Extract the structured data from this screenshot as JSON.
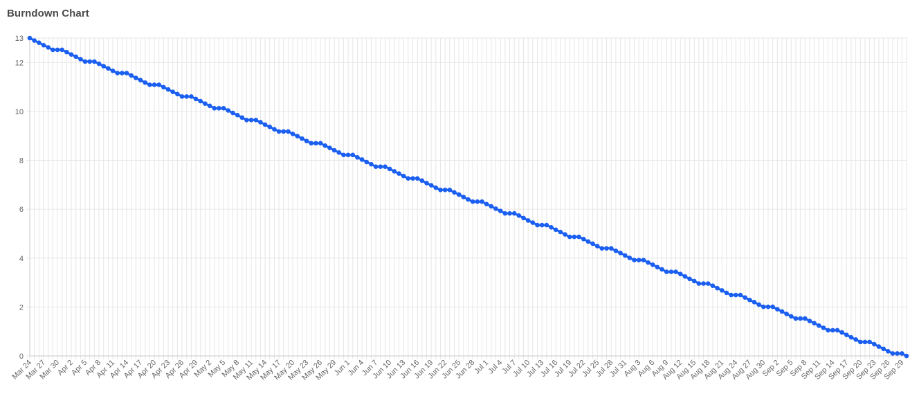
{
  "title": "Burndown Chart",
  "colors": {
    "line": "#1b5ff0",
    "point": "#1b5ff0",
    "grid": "#e6e6e6",
    "axis": "#c8c8c8"
  },
  "chart_data": {
    "type": "line",
    "title": "Burndown Chart",
    "xlabel": "",
    "ylabel": "",
    "start_date": "2024-03-24",
    "end_date": "2024-09-30",
    "ylim": [
      0,
      13
    ],
    "y_ticks": [
      0,
      2,
      4,
      6,
      8,
      10,
      12,
      13
    ],
    "x_tick_labels": [
      "Mar 24",
      "Mar 27",
      "Mar 30",
      "Apr 2",
      "Apr 5",
      "Apr 8",
      "Apr 11",
      "Apr 14",
      "Apr 17",
      "Apr 20",
      "Apr 23",
      "Apr 26",
      "Apr 29",
      "May 2",
      "May 5",
      "May 8",
      "May 11",
      "May 14",
      "May 17",
      "May 20",
      "May 23",
      "May 26",
      "May 29",
      "Jun 1",
      "Jun 4",
      "Jun 7",
      "Jun 10",
      "Jun 13",
      "Jun 16",
      "Jun 19",
      "Jun 22",
      "Jun 25",
      "Jun 28",
      "Jul 1",
      "Jul 4",
      "Jul 7",
      "Jul 10",
      "Jul 13",
      "Jul 16",
      "Jul 19",
      "Jul 22",
      "Jul 25",
      "Jul 28",
      "Jul 31",
      "Aug 3",
      "Aug 6",
      "Aug 9",
      "Aug 12",
      "Aug 15",
      "Aug 18",
      "Aug 21",
      "Aug 24",
      "Aug 27",
      "Aug 30",
      "Sep 2",
      "Sep 5",
      "Sep 8",
      "Sep 11",
      "Sep 14",
      "Sep 17",
      "Sep 20",
      "Sep 23",
      "Sep 26",
      "Sep 29"
    ],
    "series": [
      {
        "points_pattern": "linear decline from 13 to 0, flat on weekends",
        "x": [],
        "values": []
      }
    ],
    "grid": true,
    "legend": "none"
  }
}
